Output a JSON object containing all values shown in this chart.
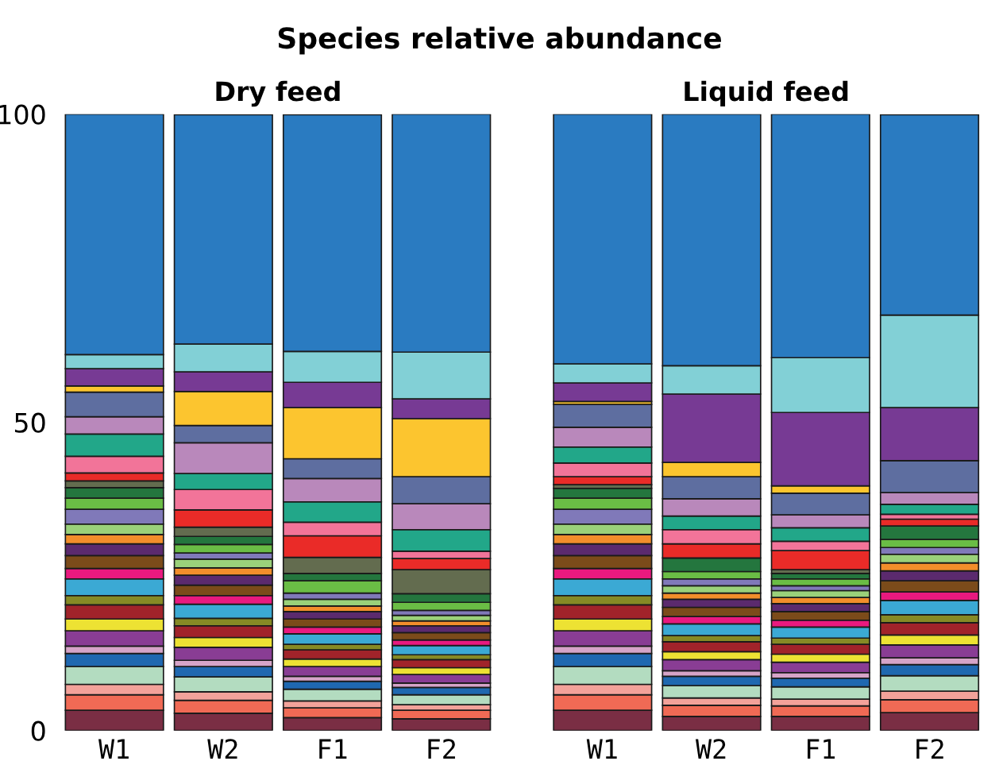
{
  "chart_data": [
    {
      "type": "bar",
      "title": "Dry feed",
      "annotations": [
        "Species relative abundance"
      ],
      "categories": [
        "W1",
        "W2",
        "F1",
        "F2"
      ],
      "stacked": true,
      "ylim": [
        0,
        100
      ],
      "yticks": [
        0,
        50,
        100
      ],
      "grid": false,
      "series": [
        {
          "color": "#7a2e44",
          "values": [
            3.3,
            2.8,
            2.1,
            1.9
          ]
        },
        {
          "color": "#f06a55",
          "values": [
            2.5,
            2.1,
            1.6,
            1.4
          ]
        },
        {
          "color": "#f3a29a",
          "values": [
            1.7,
            1.4,
            1.1,
            0.9
          ]
        },
        {
          "color": "#b3dcc0",
          "values": [
            2.9,
            2.4,
            1.9,
            1.6
          ]
        },
        {
          "color": "#1f68b0",
          "values": [
            2.1,
            1.7,
            1.3,
            1.2
          ]
        },
        {
          "color": "#d6a4c8",
          "values": [
            1.2,
            1.0,
            0.8,
            0.7
          ]
        },
        {
          "color": "#893d94",
          "values": [
            2.5,
            2.1,
            1.6,
            1.4
          ]
        },
        {
          "color": "#ede233",
          "values": [
            1.9,
            1.6,
            1.2,
            1.1
          ]
        },
        {
          "color": "#a1232a",
          "values": [
            2.3,
            1.9,
            1.5,
            1.3
          ]
        },
        {
          "color": "#868a25",
          "values": [
            1.5,
            1.2,
            0.9,
            0.8
          ]
        },
        {
          "color": "#3ba9d4",
          "values": [
            2.7,
            2.3,
            1.7,
            1.5
          ]
        },
        {
          "color": "#e9197f",
          "values": [
            1.7,
            1.4,
            1.1,
            0.9
          ]
        },
        {
          "color": "#7b4b1a",
          "values": [
            2.1,
            1.7,
            1.3,
            1.2
          ]
        },
        {
          "color": "#5b2a6e",
          "values": [
            1.9,
            1.6,
            1.2,
            1.1
          ]
        },
        {
          "color": "#f28e2b",
          "values": [
            1.5,
            1.2,
            0.9,
            0.8
          ]
        },
        {
          "color": "#9ad17a",
          "values": [
            1.7,
            1.4,
            1.1,
            0.9
          ]
        },
        {
          "color": "#8079b9",
          "values": [
            2.4,
            1.0,
            1.0,
            0.8
          ]
        },
        {
          "color": "#6abd45",
          "values": [
            1.8,
            1.4,
            2.0,
            1.3
          ]
        },
        {
          "color": "#24763e",
          "values": [
            1.7,
            1.3,
            1.2,
            1.4
          ]
        },
        {
          "color": "#636c4f",
          "values": [
            1.1,
            1.5,
            2.6,
            3.9
          ]
        },
        {
          "color": "#ea2b28",
          "values": [
            1.3,
            2.8,
            3.5,
            1.8
          ]
        },
        {
          "color": "#f27499",
          "values": [
            2.7,
            3.3,
            2.2,
            1.2
          ]
        },
        {
          "color": "#22a789",
          "values": [
            3.6,
            2.6,
            3.3,
            3.5
          ]
        },
        {
          "color": "#b988bb",
          "values": [
            2.8,
            5.0,
            3.8,
            4.2
          ]
        },
        {
          "color": "#5e6ea0",
          "values": [
            4.0,
            2.8,
            3.2,
            4.4
          ]
        },
        {
          "color": "#fcc52f",
          "values": [
            1.0,
            5.5,
            8.3,
            9.4
          ]
        },
        {
          "color": "#773a94",
          "values": [
            2.8,
            3.2,
            4.1,
            3.2
          ]
        },
        {
          "color": "#82d0d6",
          "values": [
            2.3,
            4.5,
            5.0,
            7.6
          ]
        },
        {
          "color": "#2a7bc1",
          "values": [
            39.0,
            37.2,
            38.4,
            38.6
          ]
        }
      ]
    },
    {
      "type": "bar",
      "title": "Liquid feed",
      "categories": [
        "W1",
        "W2",
        "F1",
        "F2"
      ],
      "stacked": true,
      "ylim": [
        0,
        100
      ],
      "yticks": [
        0,
        50,
        100
      ],
      "tick_labels": "x",
      "grid": false,
      "series": [
        {
          "color": "#7a2e44",
          "values": [
            3.3,
            2.3,
            2.3,
            2.9
          ]
        },
        {
          "color": "#f06a55",
          "values": [
            2.5,
            1.8,
            1.7,
            2.1
          ]
        },
        {
          "color": "#f3a29a",
          "values": [
            1.7,
            1.2,
            1.1,
            1.4
          ]
        },
        {
          "color": "#b3dcc0",
          "values": [
            2.9,
            2.0,
            2.0,
            2.5
          ]
        },
        {
          "color": "#1f68b0",
          "values": [
            2.1,
            1.5,
            1.4,
            1.8
          ]
        },
        {
          "color": "#d6a4c8",
          "values": [
            1.2,
            0.9,
            0.9,
            1.1
          ]
        },
        {
          "color": "#893d94",
          "values": [
            2.5,
            1.8,
            1.7,
            2.1
          ]
        },
        {
          "color": "#ede233",
          "values": [
            1.9,
            1.3,
            1.3,
            1.6
          ]
        },
        {
          "color": "#a1232a",
          "values": [
            2.3,
            1.6,
            1.6,
            2.0
          ]
        },
        {
          "color": "#868a25",
          "values": [
            1.5,
            1.0,
            1.0,
            1.3
          ]
        },
        {
          "color": "#3ba9d4",
          "values": [
            2.7,
            1.9,
            1.8,
            2.3
          ]
        },
        {
          "color": "#e9197f",
          "values": [
            1.7,
            1.2,
            1.1,
            1.4
          ]
        },
        {
          "color": "#7b4b1a",
          "values": [
            2.1,
            1.5,
            1.4,
            1.8
          ]
        },
        {
          "color": "#5b2a6e",
          "values": [
            1.9,
            1.3,
            1.3,
            1.6
          ]
        },
        {
          "color": "#f28e2b",
          "values": [
            1.5,
            1.0,
            1.0,
            1.3
          ]
        },
        {
          "color": "#9ad17a",
          "values": [
            1.7,
            1.2,
            1.1,
            1.4
          ]
        },
        {
          "color": "#8079b9",
          "values": [
            2.4,
            1.1,
            0.8,
            1.1
          ]
        },
        {
          "color": "#6abd45",
          "values": [
            1.8,
            1.2,
            1.1,
            1.3
          ]
        },
        {
          "color": "#24763e",
          "values": [
            1.6,
            2.2,
            0.9,
            2.2
          ]
        },
        {
          "color": "#636c4f",
          "values": [
            0.6,
            0,
            0.6,
            0
          ]
        },
        {
          "color": "#ea2b28",
          "values": [
            1.3,
            2.3,
            3.1,
            1.1
          ]
        },
        {
          "color": "#f27499",
          "values": [
            2.2,
            2.3,
            1.5,
            0.8
          ]
        },
        {
          "color": "#22a789",
          "values": [
            2.6,
            2.2,
            2.2,
            1.6
          ]
        },
        {
          "color": "#b988bb",
          "values": [
            3.2,
            2.8,
            2.1,
            1.9
          ]
        },
        {
          "color": "#5e6ea0",
          "values": [
            3.7,
            3.6,
            3.5,
            5.2
          ]
        },
        {
          "color": "#fcc52f",
          "values": [
            0.5,
            2.3,
            1.2,
            0
          ]
        },
        {
          "color": "#773a94",
          "values": [
            3.0,
            11.1,
            11.9,
            8.6
          ]
        },
        {
          "color": "#82d0d6",
          "values": [
            3.1,
            4.6,
            8.9,
            15.0
          ]
        },
        {
          "color": "#2a7bc1",
          "values": [
            40.5,
            40.8,
            39.5,
            32.5
          ]
        }
      ]
    }
  ]
}
